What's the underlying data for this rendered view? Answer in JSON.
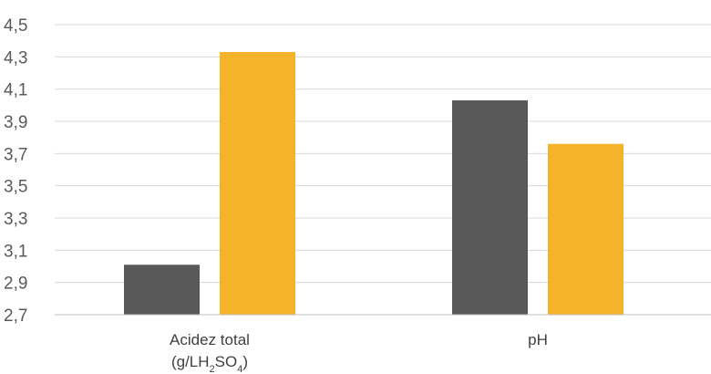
{
  "chart_data": {
    "type": "bar",
    "title": "",
    "xlabel": "",
    "ylabel": "",
    "categories": [
      {
        "label": "Acidez total",
        "label_line2": "(g/LH",
        "sub1": "2",
        "mid": "SO",
        "sub2": "4",
        "end": ")"
      },
      {
        "label": "pH",
        "label_line2": "",
        "sub1": "",
        "mid": "",
        "sub2": "",
        "end": ""
      }
    ],
    "series": [
      {
        "values": [
          3.01,
          4.03
        ],
        "color": "#595959"
      },
      {
        "values": [
          4.33,
          3.76
        ],
        "color": "#f5b32c"
      }
    ],
    "ylim": [
      2.7,
      4.5
    ],
    "yticks": [
      "2,7",
      "2,9",
      "3,1",
      "3,3",
      "3,5",
      "3,7",
      "3,9",
      "4,1",
      "4,3",
      "4,5"
    ],
    "grid": true,
    "legend": "none"
  }
}
